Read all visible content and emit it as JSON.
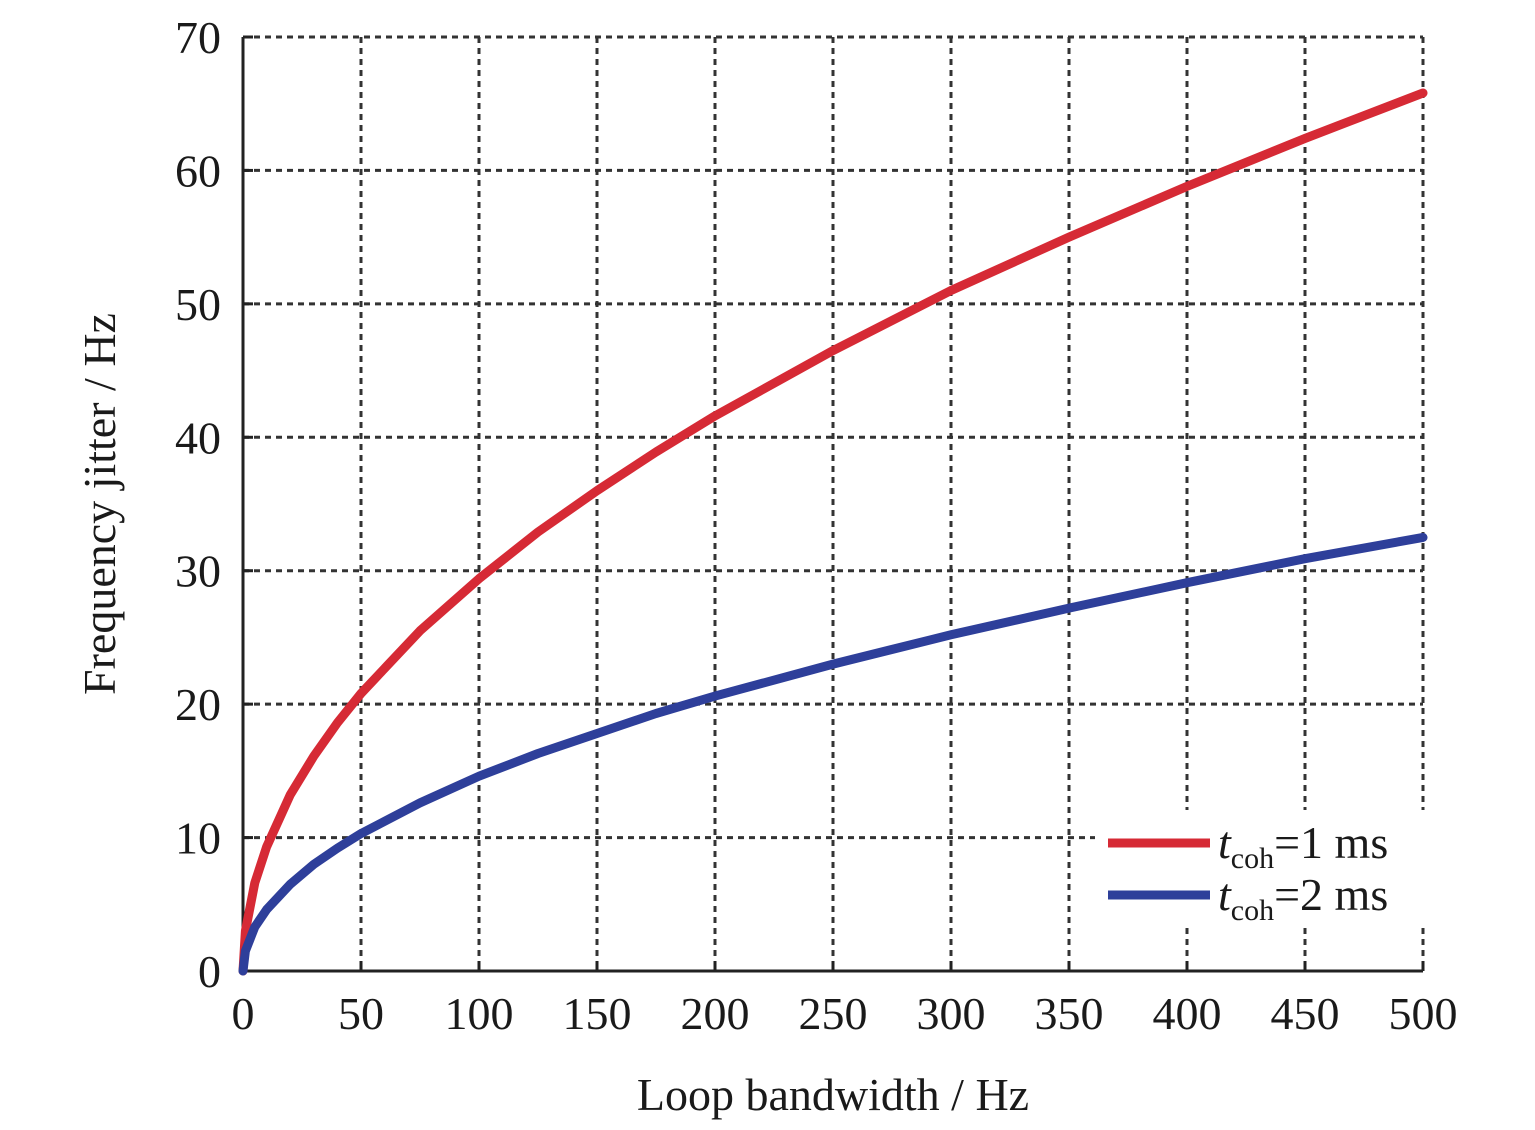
{
  "chart_data": {
    "type": "line",
    "title": "",
    "xlabel": "Loop bandwidth / Hz",
    "ylabel": "Frequency jitter / Hz",
    "xlim": [
      0,
      500
    ],
    "ylim": [
      0,
      70
    ],
    "xticks": [
      0,
      50,
      100,
      150,
      200,
      250,
      300,
      350,
      400,
      450,
      500
    ],
    "yticks": [
      0,
      10,
      20,
      30,
      40,
      50,
      60,
      70
    ],
    "grid": true,
    "legend_position": "bottom-right",
    "x": [
      1,
      5,
      10,
      20,
      30,
      40,
      50,
      75,
      100,
      125,
      150,
      175,
      200,
      250,
      300,
      350,
      400,
      450,
      500
    ],
    "series": [
      {
        "legend_var": "t",
        "legend_sub": "coh",
        "legend_rest": "=1 ms",
        "color": "#d62a35",
        "values": [
          3.0,
          6.6,
          9.3,
          13.2,
          16.1,
          18.6,
          20.8,
          25.5,
          29.4,
          32.9,
          36.0,
          38.9,
          41.6,
          46.5,
          51.0,
          55.0,
          58.8,
          62.4,
          65.8
        ]
      },
      {
        "legend_var": "t",
        "legend_sub": "coh",
        "legend_rest": "=2 ms",
        "color": "#2e3f9a",
        "values": [
          1.5,
          3.3,
          4.6,
          6.5,
          8.0,
          9.2,
          10.3,
          12.6,
          14.6,
          16.3,
          17.8,
          19.3,
          20.6,
          23.0,
          25.2,
          27.2,
          29.1,
          30.9,
          32.5
        ]
      }
    ]
  }
}
